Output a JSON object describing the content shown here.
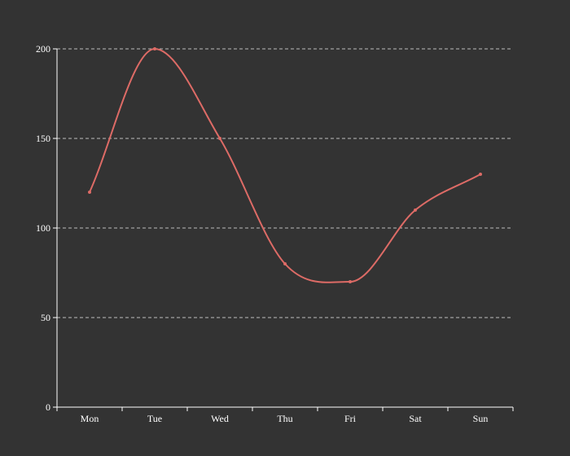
{
  "colors": {
    "background": "#333333",
    "series": "#dd6b66",
    "text": "#ffffff",
    "grid": "#cccccc"
  },
  "chart_data": {
    "type": "line",
    "smooth": true,
    "categories": [
      "Mon",
      "Tue",
      "Wed",
      "Thu",
      "Fri",
      "Sat",
      "Sun"
    ],
    "series": [
      {
        "values": [
          120,
          200,
          150,
          80,
          70,
          110,
          130
        ]
      }
    ],
    "y_ticks": [
      0,
      50,
      100,
      150,
      200
    ],
    "ylim": [
      0,
      200
    ],
    "grid": "horizontal-dashed",
    "legend": "none",
    "title": "",
    "xlabel": "",
    "ylabel": ""
  }
}
